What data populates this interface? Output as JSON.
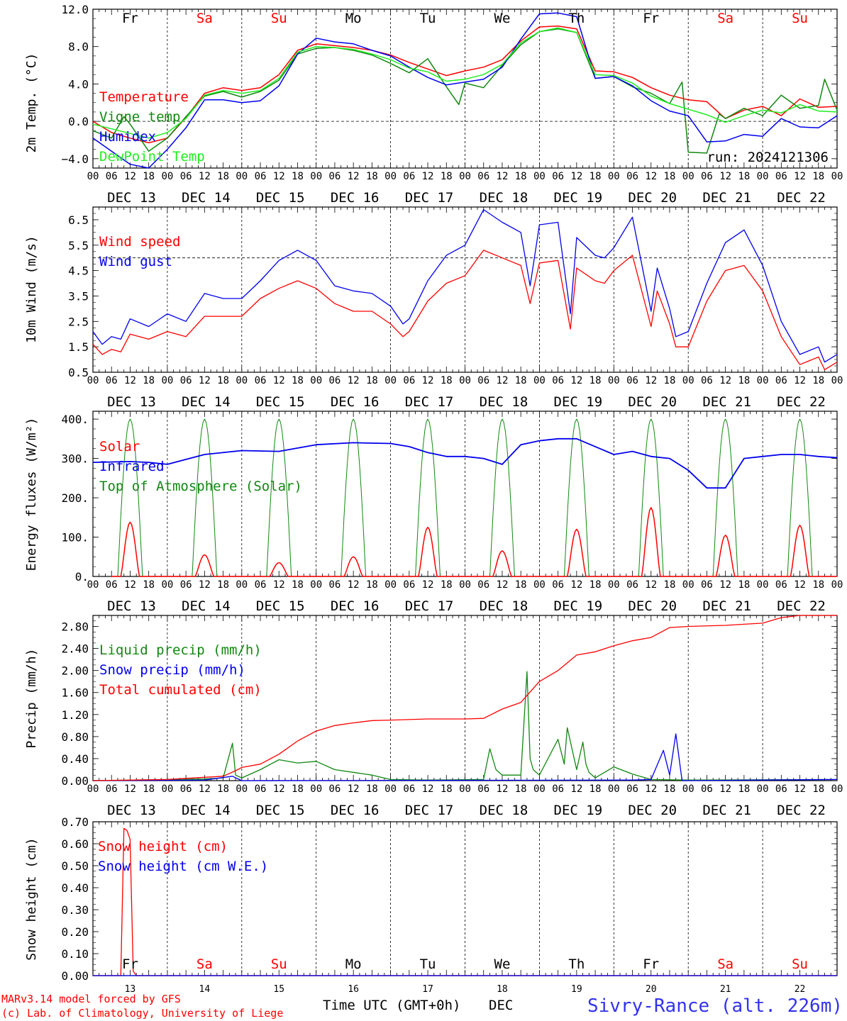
{
  "days_of_week": [
    "Fr",
    "Sa",
    "Su",
    "Mo",
    "Tu",
    "We",
    "Th",
    "Fr",
    "Sa",
    "Su"
  ],
  "weekend_flags": [
    false,
    true,
    true,
    false,
    false,
    false,
    false,
    false,
    true,
    true
  ],
  "date_labels": [
    "DEC 13",
    "DEC 14",
    "DEC 15",
    "DEC 16",
    "DEC 17",
    "DEC 18",
    "DEC 19",
    "DEC 20",
    "DEC 21",
    "DEC 22"
  ],
  "hour_labels": [
    "00",
    "06",
    "12",
    "18"
  ],
  "hour_label_end": "00",
  "bottom_day_numbers": [
    "13",
    "14",
    "15",
    "16",
    "17",
    "18",
    "19",
    "20",
    "21",
    "22"
  ],
  "run_label": "run: 2024121306",
  "footer": {
    "model": "MARv3.14 model forced by GFS",
    "credit": "(c) Lab. of Climatology, University of Liege",
    "xlabel": "Time UTC (GMT+0h)",
    "month": "DEC",
    "station": "Sivry-Rance (alt. 226m)"
  },
  "colors": {
    "red": "#ff0000",
    "green": "#118811",
    "blue": "#0000ee",
    "lightgreen": "#22ee22",
    "weekend": "#ff0000"
  },
  "chart_data": [
    {
      "type": "line",
      "ylabel": "2m Temp. (°C)",
      "ylim": [
        -5,
        12
      ],
      "yticks": [
        -4,
        0,
        4,
        8,
        12
      ],
      "ytick_labels": [
        "−4.0",
        "0.0",
        "4.0",
        "8.0",
        "12.0"
      ],
      "ref_line": 0,
      "x_unit": "hours since DEC 13 00 UTC",
      "series": [
        {
          "name": "Temperature",
          "color": "red",
          "x": [
            0,
            6,
            12,
            18,
            24,
            30,
            36,
            42,
            48,
            54,
            60,
            66,
            72,
            78,
            84,
            90,
            96,
            102,
            108,
            114,
            120,
            126,
            132,
            138,
            144,
            150,
            156,
            162,
            168,
            174,
            180,
            186,
            192,
            198,
            204,
            210,
            216,
            222,
            228,
            234,
            240
          ],
          "values": [
            0,
            -1.2,
            -1.8,
            -2.3,
            -1.8,
            0.4,
            3.0,
            3.6,
            3.3,
            3.6,
            5,
            7.6,
            8.3,
            8.1,
            7.9,
            7.6,
            7.1,
            6.3,
            5.6,
            4.9,
            5.4,
            5.8,
            6.6,
            8.6,
            10.1,
            10.2,
            9.9,
            5.4,
            5.3,
            4.7,
            3.6,
            2.8,
            2.3,
            2.1,
            0.3,
            1.2,
            1.6,
            0.6,
            2.4,
            1.5,
            1.6
          ]
        },
        {
          "name": "Vigne temp",
          "color": "green",
          "x": [
            0,
            6,
            10,
            12,
            18,
            24,
            30,
            36,
            42,
            48,
            54,
            60,
            66,
            72,
            78,
            84,
            90,
            96,
            102,
            108,
            114,
            118,
            120,
            126,
            132,
            138,
            144,
            150,
            156,
            162,
            168,
            174,
            180,
            186,
            190,
            192,
            198,
            202,
            204,
            210,
            216,
            222,
            228,
            234,
            236,
            240
          ],
          "values": [
            -1,
            -1.8,
            0.5,
            -0.3,
            -3.2,
            -1.8,
            0.5,
            2.7,
            3.2,
            2.6,
            3.2,
            4.4,
            7.2,
            7.8,
            7.9,
            7.6,
            7.1,
            6.2,
            5.2,
            6.7,
            3.7,
            1.8,
            4.1,
            3.6,
            6.0,
            8.2,
            9.6,
            9.9,
            9.5,
            4.6,
            4.8,
            3.7,
            3.0,
            1.9,
            4.2,
            -3.3,
            -3.4,
            0.8,
            0.3,
            1.4,
            0.6,
            2.8,
            1.4,
            1.7,
            4.5,
            1.2
          ]
        },
        {
          "name": "Humidex",
          "color": "blue",
          "x": [
            0,
            6,
            12,
            18,
            24,
            30,
            36,
            42,
            48,
            54,
            60,
            66,
            72,
            78,
            84,
            90,
            96,
            102,
            108,
            114,
            120,
            126,
            132,
            138,
            144,
            150,
            156,
            162,
            168,
            174,
            180,
            186,
            192,
            198,
            204,
            210,
            216,
            222,
            228,
            234,
            240
          ],
          "values": [
            -1.8,
            -3.2,
            -4.6,
            -5.0,
            -3.0,
            -0.7,
            2.3,
            2.3,
            2.0,
            2.2,
            3.8,
            7.2,
            8.9,
            8.5,
            8.3,
            7.6,
            7.0,
            5.8,
            4.7,
            3.9,
            4.2,
            4.5,
            5.8,
            8.8,
            11.5,
            11.6,
            11.2,
            4.6,
            4.8,
            3.8,
            2.2,
            1.1,
            0.6,
            -2.2,
            -2.1,
            -1.4,
            -1.6,
            0.3,
            -0.6,
            -0.7,
            0.6
          ]
        },
        {
          "name": "DewPoint Temp",
          "color": "lightgreen",
          "x": [
            0,
            6,
            12,
            18,
            24,
            30,
            36,
            42,
            48,
            54,
            60,
            66,
            72,
            78,
            84,
            90,
            96,
            102,
            108,
            114,
            120,
            126,
            132,
            138,
            144,
            150,
            156,
            162,
            168,
            174,
            180,
            186,
            192,
            198,
            204,
            210,
            216,
            222,
            228,
            234,
            240
          ],
          "values": [
            -0.3,
            -0.8,
            -1.3,
            -1.8,
            -1.2,
            0.3,
            2.8,
            3.3,
            3.0,
            3.3,
            4.6,
            7.4,
            8.0,
            7.9,
            7.7,
            7.2,
            6.6,
            5.7,
            5.3,
            4.3,
            4.5,
            5.0,
            6.1,
            8.4,
            9.6,
            10.0,
            9.5,
            5.0,
            4.9,
            4.1,
            2.7,
            1.9,
            1.3,
            0.7,
            -0.1,
            0.6,
            1.2,
            0.9,
            1.8,
            1.1,
            1.0
          ]
        }
      ]
    },
    {
      "type": "line",
      "ylabel": "10m Wind (m/s)",
      "ylim": [
        0.5,
        7.0
      ],
      "yticks": [
        0.5,
        1.5,
        2.5,
        3.5,
        4.5,
        5.5,
        6.5
      ],
      "ytick_labels": [
        "0.5",
        "1.5",
        "2.5",
        "3.5",
        "4.5",
        "5.5",
        "6.5"
      ],
      "ref_line": 5,
      "x_unit": "hours since DEC 13 00 UTC",
      "series": [
        {
          "name": "Wind speed",
          "color": "red",
          "x": [
            0,
            3,
            6,
            9,
            12,
            18,
            24,
            30,
            36,
            42,
            48,
            54,
            60,
            66,
            72,
            78,
            84,
            90,
            96,
            100,
            102,
            108,
            114,
            120,
            126,
            132,
            138,
            141,
            144,
            150,
            154,
            156,
            162,
            165,
            168,
            174,
            180,
            182,
            186,
            188,
            192,
            198,
            204,
            210,
            216,
            222,
            228,
            234,
            236,
            240
          ],
          "values": [
            1.6,
            1.2,
            1.4,
            1.3,
            2.0,
            1.8,
            2.1,
            1.9,
            2.7,
            2.7,
            2.7,
            3.4,
            3.8,
            4.1,
            3.8,
            3.2,
            2.9,
            2.9,
            2.4,
            1.9,
            2.1,
            3.3,
            4.0,
            4.3,
            5.3,
            5.0,
            4.7,
            3.2,
            4.8,
            4.9,
            2.2,
            4.6,
            4.1,
            4.0,
            4.5,
            5.1,
            2.3,
            3.7,
            2.4,
            1.5,
            1.5,
            3.3,
            4.5,
            4.7,
            3.7,
            1.9,
            0.8,
            1.1,
            0.6,
            0.9
          ]
        },
        {
          "name": "Wind gust",
          "color": "blue",
          "x": [
            0,
            3,
            6,
            9,
            12,
            18,
            24,
            30,
            36,
            42,
            48,
            54,
            60,
            66,
            72,
            78,
            84,
            90,
            96,
            100,
            102,
            108,
            114,
            120,
            126,
            132,
            138,
            141,
            144,
            150,
            154,
            156,
            162,
            165,
            168,
            174,
            180,
            182,
            186,
            188,
            192,
            198,
            204,
            210,
            216,
            222,
            228,
            234,
            236,
            240
          ],
          "values": [
            2.1,
            1.6,
            1.9,
            1.8,
            2.6,
            2.3,
            2.8,
            2.5,
            3.6,
            3.4,
            3.4,
            4.1,
            4.9,
            5.3,
            4.9,
            3.9,
            3.7,
            3.6,
            3.1,
            2.4,
            2.6,
            4.1,
            5.1,
            5.5,
            6.9,
            6.4,
            6.0,
            3.9,
            6.3,
            6.4,
            2.8,
            5.8,
            5.1,
            5.0,
            5.4,
            6.6,
            2.9,
            4.6,
            3.0,
            1.9,
            2.1,
            4.0,
            5.6,
            6.1,
            4.7,
            2.5,
            1.2,
            1.5,
            0.9,
            1.2
          ]
        }
      ]
    },
    {
      "type": "line",
      "ylabel": "Energy fluxes (W/m²)",
      "ylim": [
        0,
        420
      ],
      "yticks": [
        0,
        100,
        200,
        300,
        400
      ],
      "ytick_labels": [
        "0.",
        "100.",
        "200.",
        "300.",
        "400."
      ],
      "x_unit": "hours since DEC 13 00 UTC",
      "solar_peaks": [
        138,
        55,
        35,
        50,
        125,
        65,
        120,
        175,
        105,
        130
      ],
      "toa_peak": 400,
      "series": [
        {
          "name": "Solar",
          "color": "red"
        },
        {
          "name": "Infrared",
          "color": "blue",
          "x": [
            0,
            12,
            18,
            24,
            36,
            48,
            60,
            72,
            84,
            96,
            102,
            108,
            114,
            120,
            126,
            132,
            138,
            144,
            150,
            156,
            162,
            168,
            174,
            180,
            186,
            192,
            198,
            204,
            210,
            216,
            222,
            228,
            234,
            240
          ],
          "values": [
            290,
            292,
            290,
            285,
            310,
            320,
            318,
            335,
            340,
            338,
            330,
            315,
            305,
            305,
            300,
            285,
            335,
            345,
            350,
            350,
            330,
            310,
            318,
            305,
            300,
            270,
            225,
            225,
            300,
            305,
            310,
            310,
            305,
            302
          ]
        },
        {
          "name": "Top of Atmosphere (Solar)",
          "color": "green"
        }
      ]
    },
    {
      "type": "line",
      "ylabel": "Precip (mm/h)",
      "ylim": [
        0,
        3.0
      ],
      "yticks": [
        0,
        0.4,
        0.8,
        1.2,
        1.6,
        2.0,
        2.4,
        2.8
      ],
      "ytick_labels": [
        "0.00",
        "0.40",
        "0.80",
        "1.20",
        "1.60",
        "2.00",
        "2.40",
        "2.80"
      ],
      "x_unit": "hours since DEC 13 00 UTC",
      "series": [
        {
          "name": "Liquid precip (mm/h)",
          "color": "green",
          "x": [
            0,
            36,
            42,
            45,
            46,
            48,
            54,
            60,
            66,
            72,
            78,
            84,
            90,
            96,
            108,
            126,
            128,
            130,
            132,
            138,
            140,
            141,
            142,
            144,
            150,
            152,
            153,
            156,
            158,
            159,
            160,
            162,
            168,
            174,
            180,
            192,
            240
          ],
          "values": [
            0,
            0.03,
            0.05,
            0.68,
            0.1,
            0.05,
            0.2,
            0.38,
            0.32,
            0.35,
            0.2,
            0.15,
            0.1,
            0.02,
            0.01,
            0.02,
            0.58,
            0.2,
            0.1,
            0.1,
            1.98,
            0.4,
            0.2,
            0.1,
            0.75,
            0.3,
            0.96,
            0.2,
            0.7,
            0.3,
            0.15,
            0.05,
            0.25,
            0.12,
            0.02,
            0.01,
            0.02
          ]
        },
        {
          "name": "Snow precip (mm/h)",
          "color": "blue",
          "x": [
            0,
            36,
            45,
            48,
            174,
            180,
            184,
            186,
            188,
            190,
            240
          ],
          "values": [
            0,
            0.01,
            0.08,
            0,
            0.01,
            0.02,
            0.55,
            0.1,
            0.85,
            0,
            0.02
          ]
        },
        {
          "name": "Total cumulated (cm)",
          "color": "red",
          "x": [
            0,
            24,
            36,
            42,
            46,
            48,
            54,
            60,
            66,
            72,
            78,
            84,
            90,
            96,
            108,
            120,
            126,
            132,
            138,
            144,
            150,
            156,
            162,
            168,
            174,
            180,
            186,
            192,
            204,
            210,
            216,
            222,
            228,
            240
          ],
          "values": [
            0,
            0.02,
            0.06,
            0.08,
            0.18,
            0.24,
            0.3,
            0.48,
            0.72,
            0.9,
            1.0,
            1.05,
            1.09,
            1.1,
            1.12,
            1.12,
            1.13,
            1.3,
            1.42,
            1.8,
            2.0,
            2.28,
            2.34,
            2.45,
            2.54,
            2.6,
            2.78,
            2.8,
            2.82,
            2.84,
            2.86,
            2.96,
            3.0,
            3.0
          ]
        }
      ]
    },
    {
      "type": "line",
      "ylabel": "Snow height (cm)",
      "ylim": [
        0,
        0.7
      ],
      "yticks": [
        0,
        0.1,
        0.2,
        0.3,
        0.4,
        0.5,
        0.6,
        0.7
      ],
      "ytick_labels": [
        "0.00",
        "0.10",
        "0.20",
        "0.30",
        "0.40",
        "0.50",
        "0.60",
        "0.70"
      ],
      "x_unit": "hours since DEC 13 00 UTC",
      "series": [
        {
          "name": "Snow height (cm)",
          "color": "red",
          "x": [
            0,
            9,
            10,
            11,
            12,
            13,
            14,
            240
          ],
          "values": [
            0,
            0,
            0.67,
            0.66,
            0.62,
            0.02,
            0,
            0
          ]
        },
        {
          "name": "Snow height (cm W.E.)",
          "color": "blue",
          "x": [
            0,
            240
          ],
          "values": [
            0,
            0
          ]
        }
      ]
    }
  ]
}
